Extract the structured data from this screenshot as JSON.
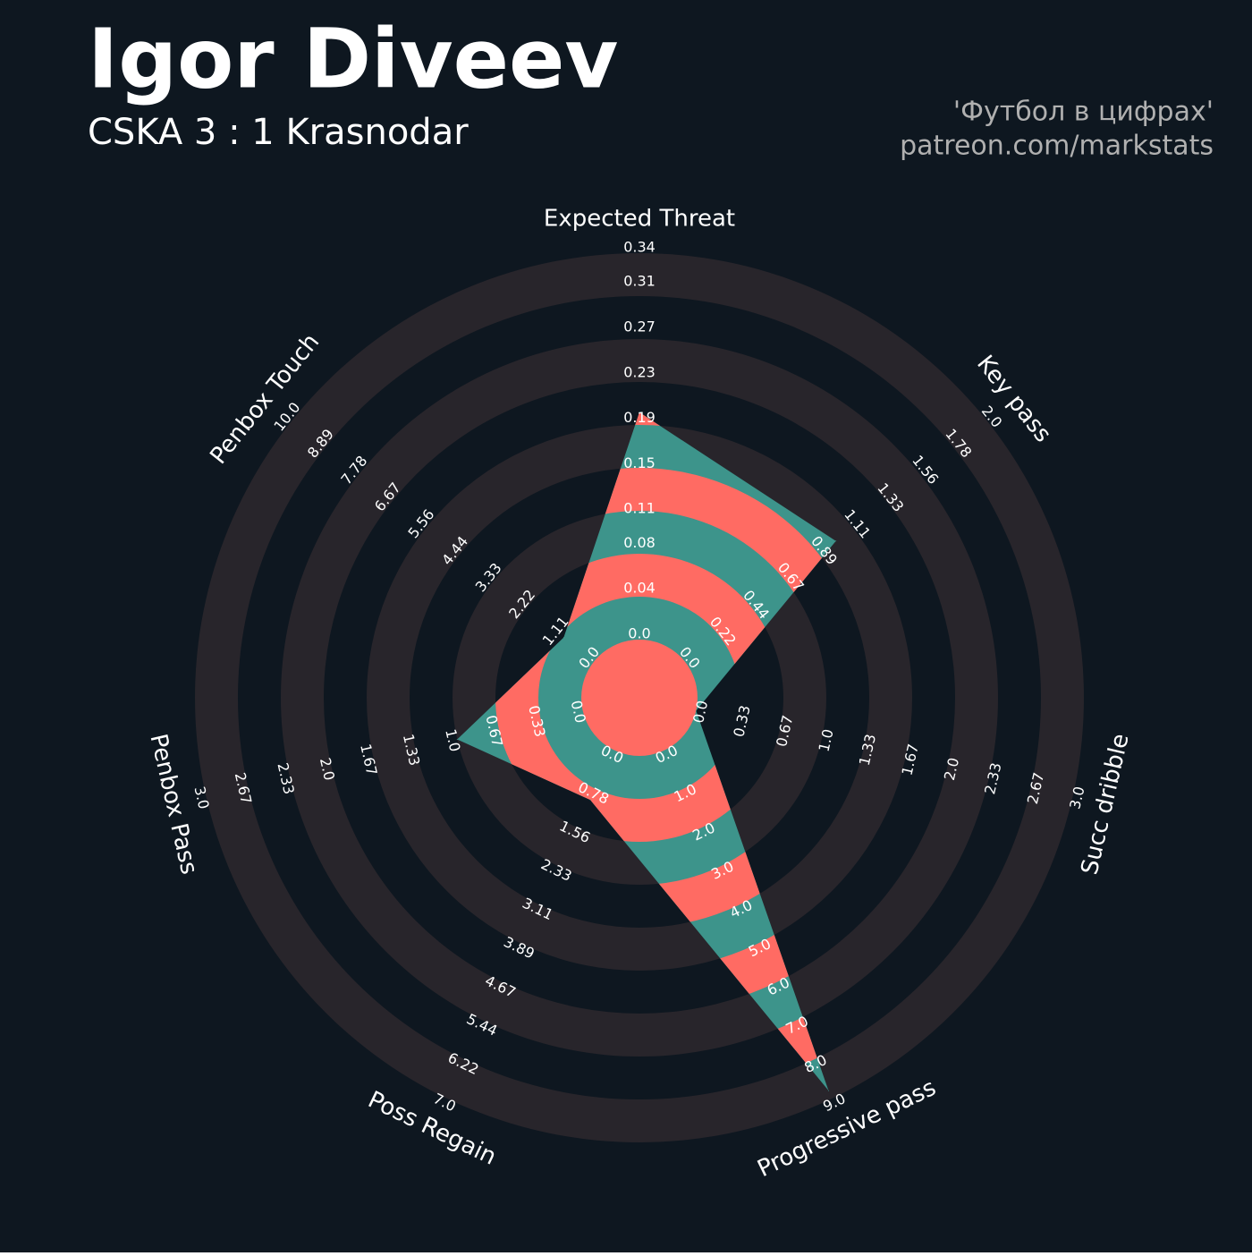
{
  "chart_data": {
    "type": "radar",
    "title": "Igor Diveev",
    "subtitle": "CSKA 3 : 1 Krasnodar",
    "credits": [
      "'Футбол в цифрах'",
      "patreon.com/markstats"
    ],
    "categories": [
      "Expected Threat",
      "Key pass",
      "Succ dribble",
      "Progressive pass",
      "Poss Regain",
      "Penbox Pass",
      "Penbox Touch"
    ],
    "values": [
      0.2,
      1.0,
      0,
      8.8,
      1.0,
      1.0,
      1.0
    ],
    "ranges": [
      [
        0,
        0.34
      ],
      [
        0,
        2.0
      ],
      [
        0,
        3.0
      ],
      [
        0,
        9.0
      ],
      [
        0,
        7.0
      ],
      [
        0,
        3.0
      ],
      [
        0,
        10.0
      ]
    ],
    "ticks": [
      [
        {
          "value": 0,
          "label": "0.0"
        },
        0.04,
        0.08,
        0.11,
        0.15,
        0.19,
        0.23,
        0.27,
        0.31,
        0.34
      ],
      [
        {
          "value": 0,
          "label": "0.0"
        },
        0.22,
        0.44,
        0.67,
        0.89,
        1.11,
        1.33,
        1.56,
        1.78,
        {
          "value": 2,
          "label": "2.0"
        }
      ],
      [
        {
          "value": 0,
          "label": "0.0"
        },
        0.33,
        0.67,
        {
          "value": 1,
          "label": "1.0"
        },
        1.33,
        1.67,
        {
          "value": 2,
          "label": "2.0"
        },
        2.33,
        2.67,
        {
          "value": 3,
          "label": "3.0"
        }
      ],
      [
        {
          "value": 0,
          "label": "0.0"
        },
        {
          "value": 1,
          "label": "1.0"
        },
        {
          "value": 2,
          "label": "2.0"
        },
        {
          "value": 3,
          "label": "3.0"
        },
        {
          "value": 4,
          "label": "4.0"
        },
        {
          "value": 5,
          "label": "5.0"
        },
        {
          "value": 6,
          "label": "6.0"
        },
        {
          "value": 7,
          "label": "7.0"
        },
        {
          "value": 8,
          "label": "8.0"
        },
        {
          "value": 9,
          "label": "9.0"
        }
      ],
      [
        {
          "value": 0,
          "label": "0.0"
        },
        0.78,
        1.56,
        2.33,
        3.11,
        3.89,
        4.67,
        5.44,
        6.22,
        {
          "value": 7,
          "label": "7.0"
        }
      ],
      [
        {
          "value": 0,
          "label": "0.0"
        },
        0.33,
        0.67,
        {
          "value": 1,
          "label": "1.0"
        },
        1.33,
        1.67,
        {
          "value": 2,
          "label": "2.0"
        },
        2.33,
        2.67,
        {
          "value": 3,
          "label": "3.0"
        }
      ],
      [
        {
          "value": 0,
          "label": "0.0"
        },
        1.11,
        2.22,
        3.33,
        4.44,
        5.56,
        6.67,
        7.78,
        8.89,
        {
          "value": 10,
          "label": "10.0"
        }
      ]
    ],
    "color": "#3d948b",
    "alt_color": "#ff6b63",
    "ring_color": "#28252b",
    "background": "#0e1720"
  }
}
